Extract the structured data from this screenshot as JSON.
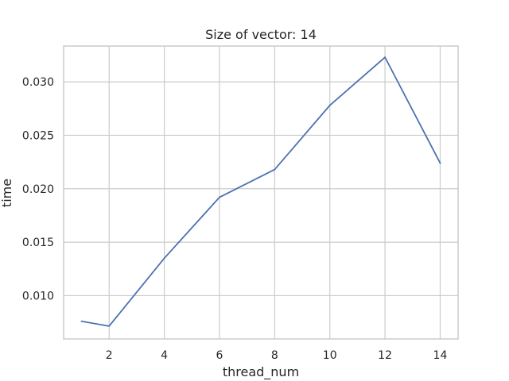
{
  "chart_data": {
    "type": "line",
    "title": "Size of vector: 14",
    "xlabel": "thread_num",
    "ylabel": "time",
    "x": [
      1,
      2,
      4,
      6,
      8,
      10,
      12,
      14
    ],
    "series": [
      {
        "values": [
          0.0076,
          0.00715,
          0.0135,
          0.0192,
          0.0218,
          0.0278,
          0.0323,
          0.0224
        ],
        "color": "#4c72b0"
      }
    ],
    "xlim": [
      0.35,
      14.65
    ],
    "ylim": [
      0.00595,
      0.03335
    ],
    "xticks": [
      2,
      4,
      6,
      8,
      10,
      12,
      14
    ],
    "xtick_labels": [
      "2",
      "4",
      "6",
      "8",
      "10",
      "12",
      "14"
    ],
    "yticks": [
      0.01,
      0.015,
      0.02,
      0.025,
      0.03
    ],
    "ytick_labels": [
      "0.010",
      "0.015",
      "0.020",
      "0.025",
      "0.030"
    ],
    "grid": true
  }
}
